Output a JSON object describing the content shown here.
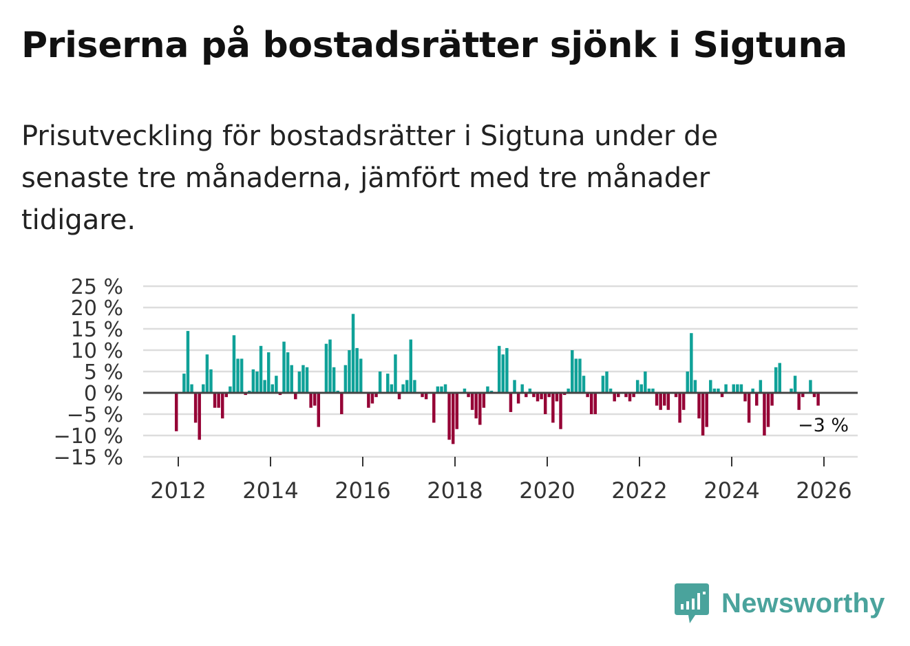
{
  "title": "Priserna på bostadsrätter sjönk i Sigtuna",
  "subtitle": "Prisutveckling för bostadsrätter i Sigtuna under de senaste tre månaderna, jämfört med tre månader tidigare.",
  "brand": {
    "name": "Newsworthy",
    "icon": "bar-chart-bubble-icon",
    "color": "#4aa39c"
  },
  "colors": {
    "positive": "#0fa198",
    "negative": "#950035",
    "grid": "#dddddd",
    "zero_line": "#444444"
  },
  "chart_data": {
    "type": "bar",
    "title": "",
    "xlabel": "",
    "ylabel": "",
    "ylim": [
      -15,
      25
    ],
    "yticks": [
      25,
      20,
      15,
      10,
      5,
      0,
      -5,
      -10,
      -15
    ],
    "ytick_labels": [
      "25 %",
      "20 %",
      "15 %",
      "10 %",
      "5 %",
      "0 %",
      "−5 %",
      "−10 %",
      "−15 %"
    ],
    "xticks": [
      2012,
      2014,
      2016,
      2018,
      2020,
      2022,
      2024,
      2026
    ],
    "xtick_labels": [
      "2012",
      "2014",
      "2016",
      "2018",
      "2020",
      "2022",
      "2024",
      "2026"
    ],
    "x_start": 2011.9583,
    "x_step": 0.08333,
    "annotation": "−3 %",
    "values": [
      -9,
      0,
      4.5,
      14.5,
      2,
      -7,
      -11,
      2,
      9,
      5.5,
      -3.5,
      -3.5,
      -6,
      -1,
      1.5,
      13.5,
      8,
      8,
      -0.5,
      0.5,
      5.5,
      5,
      11,
      3,
      9.5,
      2,
      4,
      -0.5,
      12,
      9.5,
      6.5,
      -1.5,
      5,
      6.5,
      6,
      -3.5,
      -3,
      -8,
      0,
      11.5,
      12.5,
      6,
      0.5,
      -5,
      6.5,
      10,
      18.5,
      10.5,
      8,
      0,
      -3.5,
      -2.5,
      -1,
      5,
      0,
      4.5,
      2,
      9,
      -1.5,
      2,
      3,
      12.5,
      3,
      0,
      -1,
      -1.5,
      0,
      -7,
      1.5,
      1.5,
      2,
      -11,
      -12,
      -8.5,
      0,
      1,
      -1,
      -4,
      -6,
      -7.5,
      -3.5,
      1.5,
      0.5,
      0,
      11,
      9,
      10.5,
      -4.5,
      3,
      -2.5,
      2,
      -1,
      1,
      -1,
      -2,
      -1.5,
      -5,
      -1,
      -7,
      -2,
      -8.5,
      -0.5,
      1,
      10,
      8,
      8,
      4,
      -1,
      -5,
      -5,
      0,
      4,
      5,
      1,
      -2,
      -1,
      0,
      -1,
      -2,
      -1,
      3,
      2,
      5,
      1,
      1,
      -3,
      -4,
      -3,
      -4,
      0,
      -1,
      -7,
      -4,
      5,
      14,
      3,
      -6,
      -10,
      -8,
      3,
      1,
      1,
      -1,
      2,
      0,
      2,
      2,
      2,
      -2,
      -7,
      1,
      -3,
      3,
      -10,
      -8,
      -3,
      6,
      7,
      0,
      0,
      1,
      4,
      -4,
      -1,
      0,
      3,
      -1,
      -3
    ]
  }
}
